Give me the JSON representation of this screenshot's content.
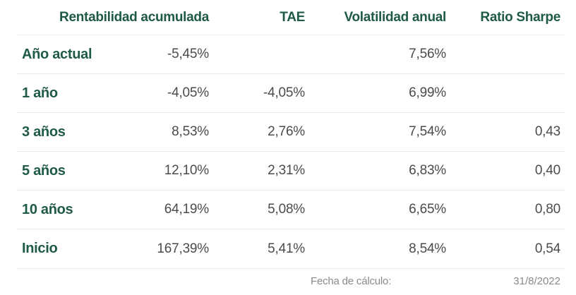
{
  "header": {
    "rentabilidad": "Rentabilidad acumulada",
    "tae": "TAE",
    "volatilidad": "Volatilidad anual",
    "sharpe": "Ratio Sharpe"
  },
  "rows": [
    {
      "label": "Año actual",
      "rentabilidad": "-5,45%",
      "tae": "",
      "volatilidad": "7,56%",
      "sharpe": ""
    },
    {
      "label": "1 año",
      "rentabilidad": "-4,05%",
      "tae": "-4,05%",
      "volatilidad": "6,99%",
      "sharpe": ""
    },
    {
      "label": "3 años",
      "rentabilidad": "8,53%",
      "tae": "2,76%",
      "volatilidad": "7,54%",
      "sharpe": "0,43"
    },
    {
      "label": "5 años",
      "rentabilidad": "12,10%",
      "tae": "2,31%",
      "volatilidad": "6,83%",
      "sharpe": "0,40"
    },
    {
      "label": "10 años",
      "rentabilidad": "64,19%",
      "tae": "5,08%",
      "volatilidad": "6,65%",
      "sharpe": "0,80"
    },
    {
      "label": "Inicio",
      "rentabilidad": "167,39%",
      "tae": "5,41%",
      "volatilidad": "8,54%",
      "sharpe": "0,54"
    }
  ],
  "footer": {
    "label": "Fecha de cálculo:",
    "value": "31/8/2022"
  },
  "colors": {
    "heading_green": "#1f5a45",
    "value_gray": "#4b4b4b",
    "footer_gray": "#8a8a8a",
    "divider": "#e6eae7"
  }
}
